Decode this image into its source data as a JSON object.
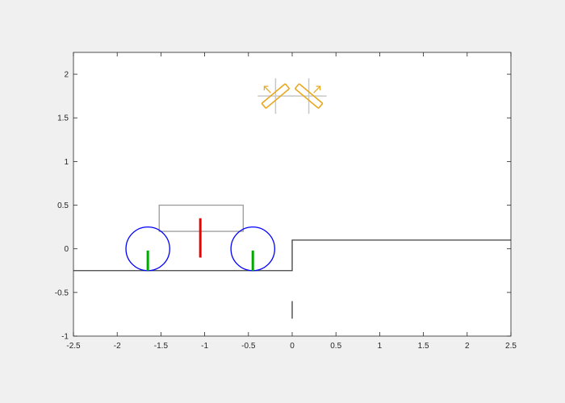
{
  "chart_data": {
    "type": "line",
    "title": "",
    "xlabel": "",
    "ylabel": "",
    "xlim": [
      -2.5,
      2.5
    ],
    "ylim": [
      -1,
      2.25
    ],
    "grid": false,
    "xticks": [
      -2.5,
      -2,
      -1.5,
      -1,
      -0.5,
      0,
      0.5,
      1,
      1.5,
      2,
      2.5
    ],
    "xtick_labels": [
      "-2.5",
      "-2",
      "-1.5",
      "-1",
      "-0.5",
      "0",
      "0.5",
      "1",
      "1.5",
      "2",
      "2.5"
    ],
    "yticks": [
      -1,
      -0.5,
      0,
      0.5,
      1,
      1.5,
      2
    ],
    "ytick_labels": [
      "-1",
      "-0.5",
      "0",
      "0.5",
      "1",
      "1.5",
      "2"
    ],
    "ground_profile": {
      "color": "#404040",
      "x": [
        -2.5,
        0,
        0,
        2.5
      ],
      "y": [
        -0.25,
        -0.25,
        0.1,
        0.1
      ]
    },
    "body_box": {
      "color": "#9a9a9a",
      "x": [
        -1.52,
        -0.56
      ],
      "y": [
        0.2,
        0.5
      ]
    },
    "wheels": {
      "color": "#0000ff",
      "items": [
        {
          "cx": -1.65,
          "cy": 0.0,
          "r": 0.25
        },
        {
          "cx": -0.45,
          "cy": 0.0,
          "r": 0.25
        }
      ]
    },
    "wheel_markers": {
      "color": "#00aa00",
      "items": [
        {
          "x": -1.65,
          "y": [
            -0.25,
            -0.02
          ]
        },
        {
          "x": -0.45,
          "y": [
            -0.25,
            -0.02
          ]
        }
      ]
    },
    "body_marker": {
      "color": "#ee0000",
      "x": -1.05,
      "y": [
        -0.1,
        0.35
      ]
    },
    "reference_mark": {
      "color": "#000000",
      "x": 0,
      "y": [
        -0.6,
        -0.8
      ]
    },
    "rotors": {
      "color": "#e8a820",
      "crosshair_color": "#c8c8c8",
      "items": [
        {
          "cx": -0.19,
          "cy": 1.75,
          "dir": -1
        },
        {
          "cx": 0.19,
          "cy": 1.75,
          "dir": 1
        }
      ]
    }
  }
}
